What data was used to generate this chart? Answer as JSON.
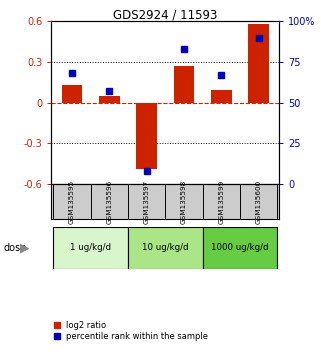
{
  "title": "GDS2924 / 11593",
  "samples": [
    "GSM135595",
    "GSM135596",
    "GSM135597",
    "GSM135598",
    "GSM135599",
    "GSM135600"
  ],
  "log2_ratio": [
    0.13,
    0.05,
    -0.49,
    0.27,
    0.09,
    0.58
  ],
  "percentile_rank": [
    68,
    57,
    8,
    83,
    67,
    90
  ],
  "dose_groups": [
    {
      "label": "1 ug/kg/d",
      "start": 0,
      "end": 1,
      "color": "#d8f5cc"
    },
    {
      "label": "10 ug/kg/d",
      "start": 2,
      "end": 3,
      "color": "#aae688"
    },
    {
      "label": "1000 ug/kg/d",
      "start": 4,
      "end": 5,
      "color": "#66cc44"
    }
  ],
  "ylim_left": [
    -0.6,
    0.6
  ],
  "yticks_left": [
    -0.6,
    -0.3,
    0.0,
    0.3,
    0.6
  ],
  "ytick_labels_left": [
    "-0.6",
    "-0.3",
    "0",
    "0.3",
    "0.6"
  ],
  "yticks_right": [
    0,
    25,
    50,
    75,
    100
  ],
  "ytick_labels_right": [
    "0",
    "25",
    "50",
    "75",
    "100%"
  ],
  "bar_color_red": "#cc2200",
  "marker_color_blue": "#0000bb",
  "bg_plot": "#ffffff",
  "bg_sample_row": "#cccccc",
  "legend_red_label": "log2 ratio",
  "legend_blue_label": "percentile rank within the sample",
  "bar_width": 0.55,
  "marker_size": 5
}
